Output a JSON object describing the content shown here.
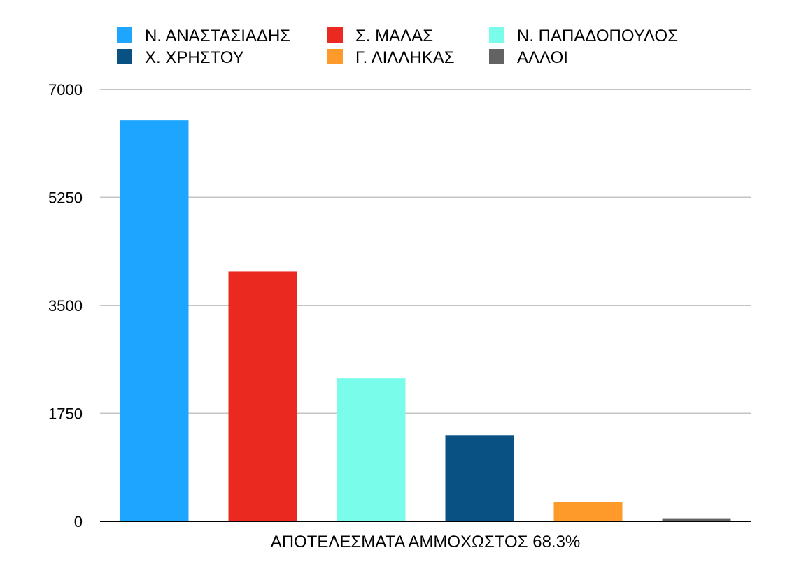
{
  "chart_data": {
    "type": "bar",
    "categories": [
      "Ν. ΑΝΑΣΤΑΣΙΑΔΗΣ",
      "Σ. ΜΑΛΑΣ",
      "Ν. ΠΑΠΑΔΟΠΟΥΛΟΣ",
      "Χ. ΧΡΗΣΤΟΥ",
      "Γ. ΛΙΛΛΗΚΑΣ",
      "ΑΛΛΟΙ"
    ],
    "values": [
      6500,
      4050,
      2320,
      1390,
      310,
      50
    ],
    "colors": [
      "#1ea5ff",
      "#ea2a20",
      "#7afcea",
      "#0a5183",
      "#fd9a2a",
      "#636363"
    ],
    "title": "",
    "xlabel": "ΑΠΟΤΕΛΕΣΜΑΤΑ ΑΜΜΟΧΩΣΤΟΣ 68.3%",
    "ylabel": "",
    "ylim": [
      0,
      7000
    ],
    "yticks": [
      0,
      1750,
      3500,
      5250,
      7000
    ],
    "grid": true,
    "legend_position": "top"
  }
}
